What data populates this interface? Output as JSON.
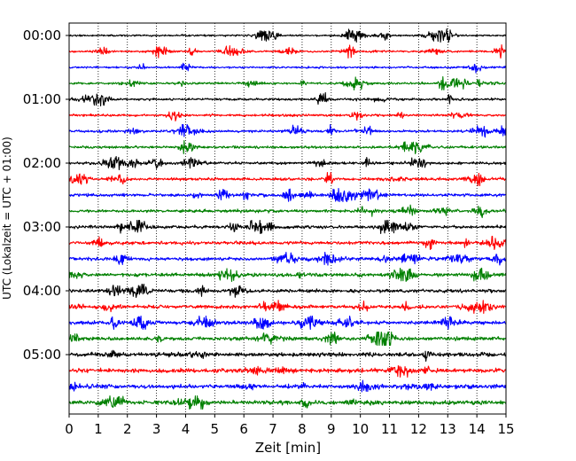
{
  "chart_data": {
    "type": "line",
    "subtype": "helicorder seismogram",
    "xlabel": "Zeit  [min]",
    "ylabel": "UTC (Lokalzeit = UTC + 01:00)",
    "xlim": [
      0,
      15
    ],
    "x_ticks": [
      0,
      1,
      2,
      3,
      4,
      5,
      6,
      7,
      8,
      9,
      10,
      11,
      12,
      13,
      14,
      15
    ],
    "x_tick_labels": [
      "0",
      "1",
      "2",
      "3",
      "4",
      "5",
      "6",
      "7",
      "8",
      "9",
      "10",
      "11",
      "12",
      "13",
      "14",
      "15"
    ],
    "y_tick_labels": [
      "00:00",
      "01:00",
      "02:00",
      "03:00",
      "04:00",
      "05:00"
    ],
    "trace_interval_min": 15,
    "trace_count": 24,
    "trace_start_times_utc": [
      "00:00",
      "00:15",
      "00:30",
      "00:45",
      "01:00",
      "01:15",
      "01:30",
      "01:45",
      "02:00",
      "02:15",
      "02:30",
      "02:45",
      "03:00",
      "03:15",
      "03:30",
      "03:45",
      "04:00",
      "04:15",
      "04:30",
      "04:45",
      "05:00",
      "05:15",
      "05:30",
      "05:45"
    ],
    "color_cycle": [
      "#000000",
      "#ff0000",
      "#0000ff",
      "#008000"
    ],
    "grid": "vertical dotted at each minute",
    "legend": "none"
  }
}
